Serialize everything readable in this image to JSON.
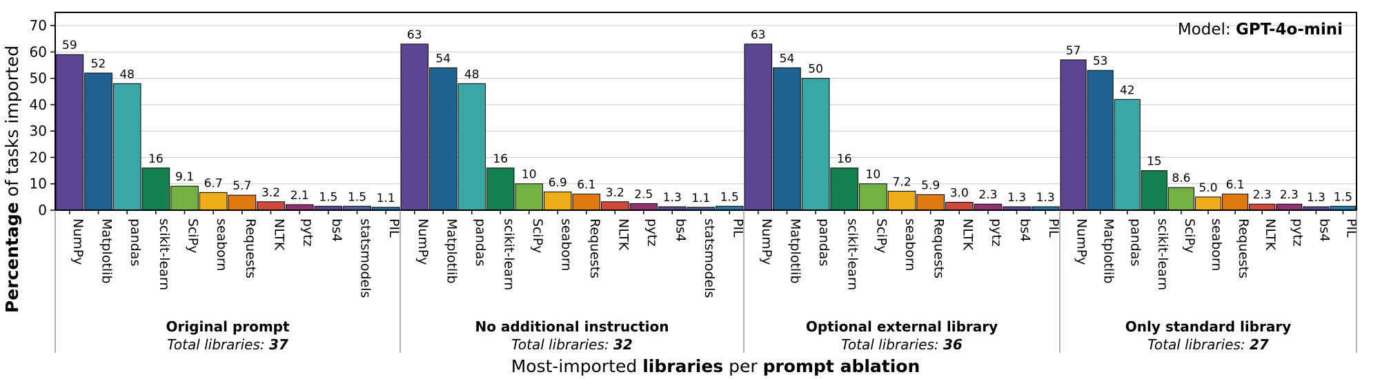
{
  "chart_data": {
    "type": "bar",
    "model_prefix": "Model: ",
    "model_name": "GPT-4o-mini",
    "ylabel_bold": "Percentage",
    "ylabel_rest": " of tasks imported",
    "xlabel_parts": [
      {
        "text": "Most-imported ",
        "bold": false
      },
      {
        "text": "libraries",
        "bold": true
      },
      {
        "text": " per ",
        "bold": false
      },
      {
        "text": "prompt ablation",
        "bold": true
      }
    ],
    "ylim": [
      0,
      75
    ],
    "yticks": [
      0,
      10,
      20,
      30,
      40,
      50,
      60,
      70
    ],
    "colors": {
      "NumPy": "#5c4593",
      "Matplotlib": "#1f6391",
      "pandas": "#3aa7a6",
      "scikit-learn": "#14804f",
      "SciPy": "#73b144",
      "seaborn": "#edad18",
      "Requests": "#e07b12",
      "NLTK": "#cf4a3a",
      "pytz": "#93306f",
      "bs4": "#5c4593",
      "statsmodels": "#4a5c9a",
      "PIL": "#2576ab"
    },
    "groups": [
      {
        "title": "Original prompt",
        "total_label": "Total libraries: ",
        "total": "37",
        "categories": [
          "NumPy",
          "Matplotlib",
          "pandas",
          "scikit-learn",
          "SciPy",
          "seaborn",
          "Requests",
          "NLTK",
          "pytz",
          "bs4",
          "statsmodels",
          "PIL"
        ],
        "values": [
          59,
          52,
          48,
          16,
          9.1,
          6.7,
          5.7,
          3.2,
          2.1,
          1.5,
          1.5,
          1.1
        ],
        "labels": [
          "59",
          "52",
          "48",
          "16",
          "9.1",
          "6.7",
          "5.7",
          "3.2",
          "2.1",
          "1.5",
          "1.5",
          "1.1"
        ]
      },
      {
        "title": "No additional instruction",
        "total_label": "Total libraries: ",
        "total": "32",
        "categories": [
          "NumPy",
          "Matplotlib",
          "pandas",
          "scikit-learn",
          "SciPy",
          "seaborn",
          "Requests",
          "NLTK",
          "pytz",
          "bs4",
          "statsmodels",
          "PIL"
        ],
        "values": [
          63,
          54,
          48,
          16,
          10,
          6.9,
          6.1,
          3.2,
          2.5,
          1.3,
          1.1,
          1.5
        ],
        "labels": [
          "63",
          "54",
          "48",
          "16",
          "10",
          "6.9",
          "6.1",
          "3.2",
          "2.5",
          "1.3",
          "1.1",
          "1.5"
        ]
      },
      {
        "title": "Optional external library",
        "total_label": "Total libraries: ",
        "total": "36",
        "categories": [
          "NumPy",
          "Matplotlib",
          "pandas",
          "scikit-learn",
          "SciPy",
          "seaborn",
          "Requests",
          "NLTK",
          "pytz",
          "bs4",
          "PIL"
        ],
        "values": [
          63,
          54,
          50,
          16,
          10,
          7.2,
          5.9,
          3.0,
          2.3,
          1.3,
          1.3
        ],
        "labels": [
          "63",
          "54",
          "50",
          "16",
          "10",
          "7.2",
          "5.9",
          "3.0",
          "2.3",
          "1.3",
          "1.3"
        ]
      },
      {
        "title": "Only standard library",
        "total_label": "Total libraries: ",
        "total": "27",
        "categories": [
          "NumPy",
          "Matplotlib",
          "pandas",
          "scikit-learn",
          "SciPy",
          "seaborn",
          "Requests",
          "NLTK",
          "pytz",
          "bs4",
          "PIL"
        ],
        "values": [
          57,
          53,
          42,
          15,
          8.6,
          5.0,
          6.1,
          2.3,
          2.3,
          1.3,
          1.5
        ],
        "labels": [
          "57",
          "53",
          "42",
          "15",
          "8.6",
          "5.0",
          "6.1",
          "2.3",
          "2.3",
          "1.3",
          "1.5"
        ]
      }
    ]
  }
}
